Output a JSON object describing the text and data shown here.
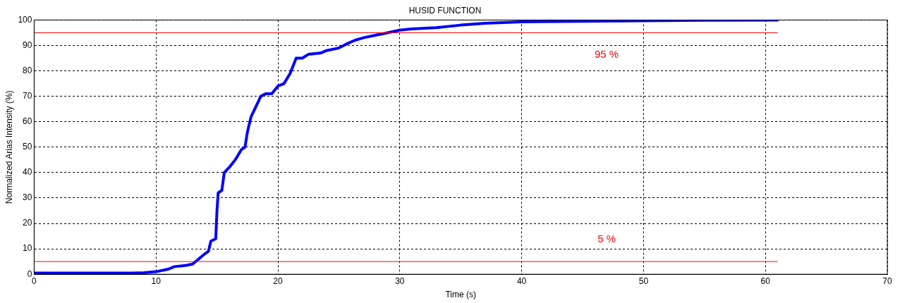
{
  "chart_data": {
    "type": "line",
    "title": "HUSID FUNCTION",
    "xlabel": "Time (s)",
    "ylabel": "Normalized Arias Intensity (%)",
    "x": [
      0,
      8,
      9,
      10,
      11,
      11.5,
      12.5,
      13,
      13.5,
      14,
      14.3,
      14.5,
      14.9,
      15,
      15.1,
      15.4,
      15.6,
      16,
      16.5,
      17,
      17.3,
      17.5,
      17.8,
      18.2,
      18.6,
      19,
      19.5,
      20,
      20.5,
      21,
      21.5,
      22,
      22.5,
      23.5,
      24,
      25,
      25.6,
      26.3,
      27,
      28,
      29,
      30,
      31,
      33,
      35,
      37,
      40,
      45,
      50,
      55,
      61
    ],
    "series": [
      {
        "color": "#0000ff",
        "values": [
          0.5,
          0.5,
          0.6,
          1,
          2,
          3,
          3.5,
          4,
          6,
          8,
          9,
          13,
          14,
          25,
          32,
          33,
          40,
          42,
          45,
          49,
          50,
          56,
          62,
          66,
          70,
          71,
          71,
          74,
          75,
          79,
          85,
          85,
          86.5,
          87,
          88,
          89,
          90.5,
          92,
          93,
          94,
          95,
          96,
          96.5,
          97,
          98,
          98.7,
          99.3,
          99.5,
          99.7,
          99.9,
          100
        ]
      }
    ],
    "xlim": [
      0,
      70
    ],
    "xticks": [
      0,
      10,
      20,
      30,
      40,
      50,
      60,
      70
    ],
    "ylim": [
      0,
      100
    ],
    "yticks": [
      0,
      10,
      20,
      30,
      40,
      50,
      60,
      70,
      80,
      90,
      100
    ],
    "grid": true,
    "legend": false,
    "marker": "none",
    "line_style": "solid",
    "ref_lines": [
      {
        "axis": "y",
        "value": 95,
        "color": "#ff0000",
        "label": "95 %"
      },
      {
        "axis": "y",
        "value": 5,
        "color": "#ff0000",
        "label": "5 %"
      }
    ]
  }
}
